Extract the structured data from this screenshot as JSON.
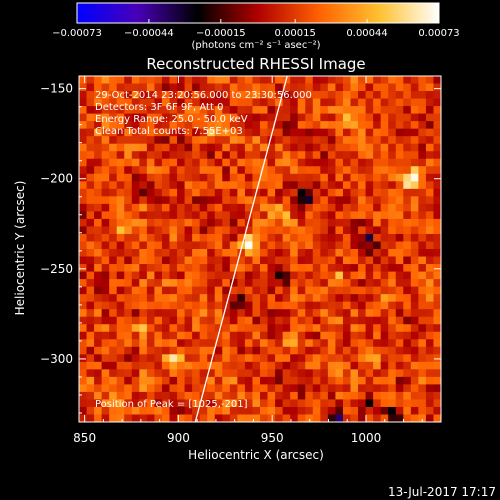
{
  "chart_data": {
    "type": "heatmap",
    "title": "Reconstructed RHESSI Image",
    "xlabel": "Heliocentric X (arcsec)",
    "ylabel": "Heliocentric Y (arcsec)",
    "xlim": [
      847,
      1040
    ],
    "ylim": [
      -335,
      -143
    ],
    "x_ticks": [
      850,
      900,
      950,
      1000
    ],
    "x_tick_labels": [
      "850",
      "900",
      "950",
      "1000"
    ],
    "y_ticks": [
      -150,
      -200,
      -250,
      -300
    ],
    "y_tick_labels": [
      "−150",
      "−200",
      "−250",
      "−300"
    ],
    "colorbar": {
      "range": [
        -0.00073,
        0.00073
      ],
      "ticks": [
        -0.00073,
        -0.00044,
        -0.00015,
        0.00015,
        0.00044,
        0.00073
      ],
      "tick_labels": [
        "−0.00073",
        "−0.00044",
        "−0.00015",
        "0.00015",
        "0.00044",
        "0.00073"
      ],
      "unit_label": "(photons cm⁻² s⁻¹ asec⁻²)",
      "colors": [
        "#0000ff",
        "#4800b8",
        "#000000",
        "#b00000",
        "#ff6000",
        "#ffc030",
        "#ffffff"
      ]
    },
    "annotations": [
      "29-Oct-2014 23:20:56.000 to 23:30:56.000",
      "Detectors: 3F 6F 9F, Att 0",
      "Energy Range: 25.0 - 50.0 keV",
      "Clean     Total counts: 7.55E+03"
    ],
    "peak_label": "Position of Peak = [1025,-201]",
    "peak_position": [
      1025,
      -201
    ],
    "limb_line": [
      [
        909,
        -335
      ],
      [
        958,
        -143
      ]
    ],
    "hot_spots": [
      {
        "x": 1025,
        "y": -201,
        "value": 0.00073
      },
      {
        "x": 938,
        "y": -236,
        "value": 0.0005
      },
      {
        "x": 882,
        "y": -312,
        "value": 0.00042
      },
      {
        "x": 897,
        "y": -302,
        "value": 0.0004
      },
      {
        "x": 882,
        "y": -283,
        "value": 0.00036
      },
      {
        "x": 985,
        "y": -255,
        "value": 0.0003
      },
      {
        "x": 1010,
        "y": -268,
        "value": 0.00028
      },
      {
        "x": 870,
        "y": -230,
        "value": 0.00026
      },
      {
        "x": 960,
        "y": -290,
        "value": 0.00026
      },
      {
        "x": 918,
        "y": -175,
        "value": 0.00024
      },
      {
        "x": 1030,
        "y": -310,
        "value": 0.00024
      },
      {
        "x": 990,
        "y": -165,
        "value": 0.00022
      },
      {
        "x": 955,
        "y": -220,
        "value": 0.00022
      },
      {
        "x": 1005,
        "y": -300,
        "value": 0.0002
      },
      {
        "x": 925,
        "y": -325,
        "value": 0.00022
      },
      {
        "x": 865,
        "y": -325,
        "value": 0.00018
      }
    ],
    "cold_spots": [
      {
        "x": 985,
        "y": -335,
        "value": -0.00045
      },
      {
        "x": 968,
        "y": -210,
        "value": -0.00035
      },
      {
        "x": 1000,
        "y": -235,
        "value": -0.00035
      },
      {
        "x": 955,
        "y": -255,
        "value": -0.0003
      },
      {
        "x": 1015,
        "y": -330,
        "value": -0.00032
      },
      {
        "x": 880,
        "y": -205,
        "value": -0.00028
      },
      {
        "x": 930,
        "y": -270,
        "value": -0.00025
      },
      {
        "x": 1000,
        "y": -325,
        "value": -0.00035
      }
    ]
  },
  "footer_timestamp": "13-Jul-2017 17:17"
}
